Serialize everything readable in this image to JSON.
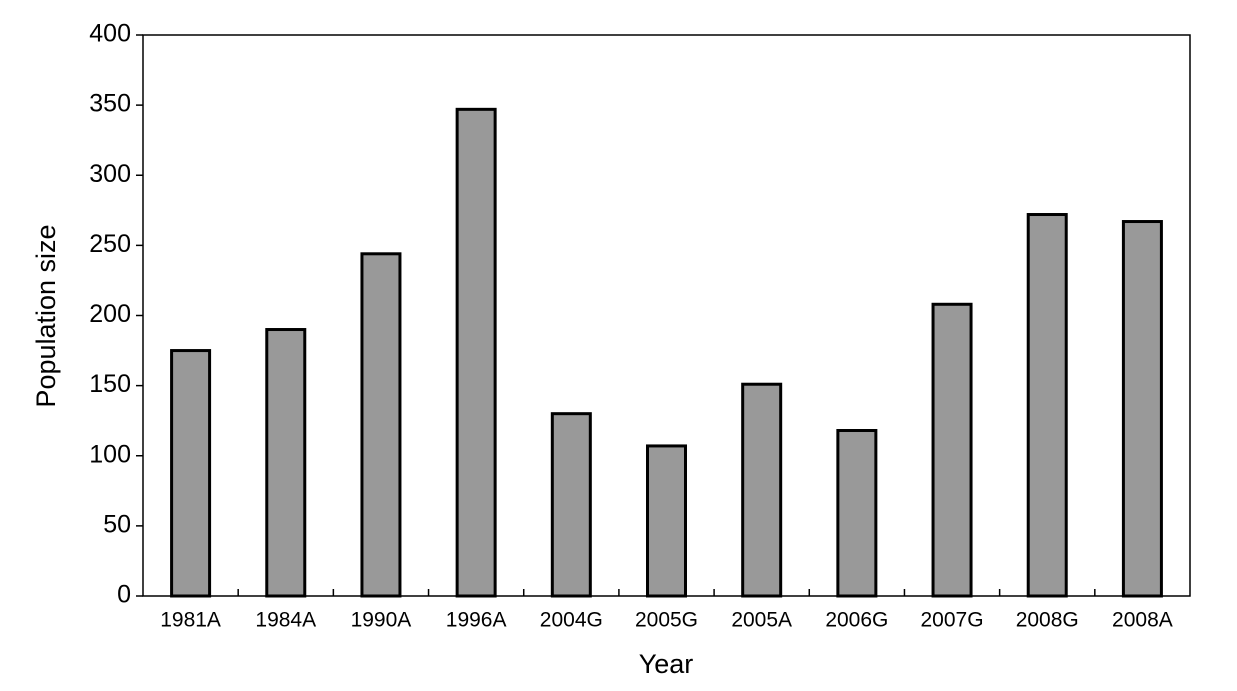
{
  "chart_data": {
    "type": "bar",
    "x_label": "Year",
    "y_label": "Population size",
    "categories": [
      "1981A",
      "1984A",
      "1990A",
      "1996A",
      "2004G",
      "2005G",
      "2005A",
      "2006G",
      "2007G",
      "2008G",
      "2008A"
    ],
    "values": [
      175,
      190,
      244,
      347,
      130,
      107,
      151,
      118,
      208,
      272,
      267
    ],
    "color": "#999999",
    "ylim": [
      0,
      400
    ],
    "yticks": [
      0,
      50,
      100,
      150,
      200,
      250,
      300,
      350,
      400
    ],
    "grid": false
  }
}
